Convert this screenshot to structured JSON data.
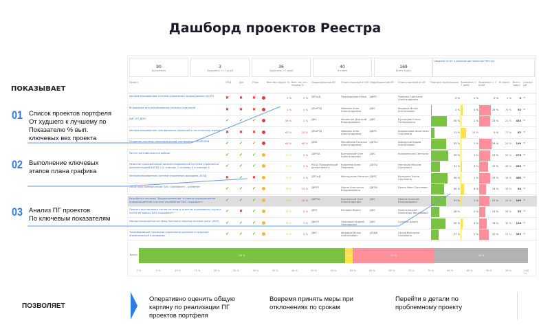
{
  "title": "Дашборд проектов Реестра",
  "shows": {
    "heading": "ПОКАЗЫВАЕТ",
    "items": [
      {
        "num": "01",
        "text": "Список проектов портфеля\nОт худшего к лучшему по\nПоказателю % вып.\nключевых вех проекта"
      },
      {
        "num": "02",
        "text": "Выполнение ключевых\nэтапов плана графика"
      },
      {
        "num": "03",
        "text": "Анализ ПГ проектов\nПо ключевым показателям"
      }
    ]
  },
  "kpis": [
    {
      "value": "90",
      "label": "Выполнено"
    },
    {
      "value": "3",
      "label": "Задержка <=7 дней"
    },
    {
      "value": "36",
      "label": "Задержка >7 дней"
    },
    {
      "value": "40",
      "label": "В плане"
    },
    {
      "value": "169",
      "label": "Всего задач"
    }
  ],
  "report_link": "Сводный отчет о реализации проектов Реестра",
  "columns": [
    "Проект",
    "ОПД",
    "Дог",
    "План",
    "Вып.вех нараст.%",
    "Вып. по, отч. период %",
    "Подразделение ВЗ",
    "Ответственный от ВЗ",
    "Подразделение ИТ",
    "Ответственный от ИТ",
    "Прогресс выполнения",
    "Задержка < 7 дней",
    "Задержка > 7 дней",
    "В плане",
    "Всего задач",
    "Ссылка ДК"
  ],
  "colors": {
    "red": "#e23b3b",
    "orange": "#f7b731",
    "green": "#7cc242",
    "yellow": "#ffe04d",
    "pink": "#ff8f9a",
    "gray": "#b3b3b3",
    "link": "#3a6fd8",
    "accent": "#2f7de1"
  },
  "rows": [
    {
      "name": "Автоматизированная система управления подрядчиками (АСУП)",
      "opd": "x",
      "dog": "x",
      "plan": "x",
      "status": "red",
      "pct": "0 %",
      "pct2": "0 %",
      "dept": "ДПСиД",
      "resp": "Поликарпова Юлия",
      "dept_it": "ДИРС",
      "resp_it": "Панкова Светлана Александровна",
      "progress": "0 %",
      "d7": "0 %",
      "d7p": "0 %",
      "inplan": "0 %",
      "total": "0"
    },
    {
      "name": "BI решение для планирования сложных компаний",
      "opd": "x",
      "dog": "x",
      "plan": "x",
      "status": "red",
      "pct": "3 %",
      "pct2": "0 %",
      "dept": "ДПиРТД",
      "resp": "Иванова Анна Александровна",
      "dept_it": "ДИС",
      "resp_it": "Федоров Игорь Анатольевич",
      "progress": "2 %",
      "d7": "4 %",
      "d7p": "24 %",
      "inplan": "70 %",
      "total": "92"
    },
    {
      "name": "АИС УП_ДОП",
      "opd": "v",
      "dog": "v",
      "plan": "v",
      "status": "red",
      "pct": "56 %",
      "pct2": "2 %",
      "dept": "ДИС",
      "resp": "Филиппов Дмитрий Владимирович",
      "dept_it": "ДИС",
      "resp_it": "Кузнецова Елена Геннадьевна",
      "progress": "55 %",
      "d7": "2 %",
      "d7p": "23 %",
      "inplan": "21 %",
      "total": "453"
    },
    {
      "name": "Автоматизированное планирование компаний в тактическом периоде",
      "opd": "x",
      "dog": "x",
      "plan": "x",
      "status": "red",
      "pct": "67 %",
      "pct2": "23 %",
      "dept": "ДПиРТД",
      "resp": "Иванова Анна Александровна",
      "dept_it": "ДИРС",
      "resp_it": "Хорошилова Анастасия Сергеевна",
      "progress": "11 %",
      "d7": "12 %",
      "d7p": "0 %",
      "inplan": "77 %",
      "total": "82"
    },
    {
      "name": "Создание системы технологической платформы ... КОРОЛЕВ",
      "opd": "v",
      "dog": "v",
      "plan": "v",
      "status": "red",
      "pct": "69 %",
      "pct2": "65 %",
      "dept": "ДПИ",
      "resp": "Михайлова Наталья Александровна",
      "dept_it": "ДИТЫ",
      "resp_it": "Шамрунов Вадим Анатольевич",
      "progress": "53 %",
      "d7": "1 %",
      "d7p": "26 %",
      "inplan": "20 %",
      "total": "199"
    },
    {
      "name": "Расчет рентабельности рейсов",
      "opd": "v",
      "dog": "v",
      "plan": "v",
      "status": "orange",
      "pct": "71 %",
      "pct2": "0 %",
      "dept": "ДИРЗА",
      "resp": "Болтовский Олег Александрович",
      "dept_it": "ДИС",
      "resp_it": "Коломенская Светлана",
      "progress": "59 %",
      "d7": "1 %",
      "d7p": "23 %",
      "inplan": "20 %",
      "total": "276"
    },
    {
      "name": "Развитие корпоративной автоматизированной системы управления документацией КАСУД 2.0, очередь 2, очередь 3 и очередь 4",
      "opd": "v",
      "dog": "v",
      "plan": "v",
      "status": "orange",
      "pct": "71 %",
      "pct2": "0 %",
      "dept": "КЮД (Юридический департамент)",
      "resp": "Ковалева Анна Павловна",
      "dept_it": "ДИТЫ",
      "resp_it": "Нестеров Максим Сергеевич",
      "progress": "31 %",
      "d7": "3 %",
      "d7p": "19 %",
      "inplan": "46 %",
      "total": "283"
    },
    {
      "name": "Автоматизированная система управления доходами_АСУД",
      "opd": "x",
      "dog": "v",
      "plan": "x",
      "status": "orange",
      "pct": "75 %",
      "pct2": "0 %",
      "dept": "ДПСиД",
      "resp": "Французова Наталья",
      "dept_it": "ДИРС",
      "resp_it": "Володина Елена Сергеевна",
      "progress": "56 %",
      "d7": "1 %",
      "d7p": "23 %",
      "inplan": "18 %",
      "total": "460"
    },
    {
      "name": "Логистика коммерческой ПАО «Аэрофлот» - развитие",
      "opd": "v",
      "dog": "v",
      "plan": "v",
      "status": "orange",
      "pct": "76 %",
      "pct2": "13 %",
      "dept": "ДИОП",
      "resp": "Ирина Анастасия Владимировна",
      "dept_it": "ДИТЫ",
      "resp_it": "Панин Иван Сергеевич",
      "progress": "45 %",
      "d7": "8 %",
      "d7p": "14 %",
      "inplan": "33 %",
      "total": "64"
    },
    {
      "name": "Разработка системы \"Бюджетирование\" в рамках корпоративной информационной системы управления ПАО «Аэрофлот»",
      "opd": "v",
      "dog": "v",
      "plan": "v",
      "status": "orange",
      "pct": "76 %",
      "pct2": "15 %",
      "dept": "ДИРЗА",
      "resp": "Болтовский Олег Александрович",
      "dept_it": "ДИС",
      "resp_it": "Иванов Алексей Владимирович",
      "progress": "53 %",
      "d7": "2 %",
      "d7p": "21 %",
      "inplan": "24 %",
      "total": "169",
      "highlight": true
    },
    {
      "name": "Процесс выставления счетов на оплату агентам за перевозку груза и почты на рейсах ПАО «Аэрофлот»",
      "opd": "v",
      "dog": "x",
      "plan": "v",
      "status": "orange",
      "pct": "78 %",
      "pct2": "0 %",
      "dept": "ДПП",
      "resp": "Катаева Ирина",
      "dept_it": "ДИС",
      "resp_it": "Капельницкий Александр Викторович",
      "progress": "28 %",
      "d7": "0 %",
      "d7p": "13 %",
      "inplan": "58 %",
      "total": "53"
    },
    {
      "name": "Импортозамещение системы Контроля закупки сетевых услуг (КСУ)",
      "opd": "v",
      "dog": "v",
      "plan": "v",
      "status": "orange",
      "pct": "78 %",
      "pct2": "7 %",
      "dept": "ДИОП",
      "resp": "Леонидов Андрей Леонидович",
      "dept_it": "ДИС",
      "resp_it": "Суханов Данил",
      "progress": "50 %",
      "d7": "4 %",
      "d7p": "16 %",
      "inplan": "30 %",
      "total": "128"
    },
    {
      "name": "Трансформация процессов управления данными и создание аналитической платформы",
      "opd": "v",
      "dog": "v",
      "plan": "v",
      "status": "orange",
      "pct": "79 %",
      "pct2": "0 %",
      "dept": "ДИС",
      "resp": "Федоров Игорь Анатольевич",
      "dept_it": "ДОДИ",
      "resp_it": "Сычев Виктория Сергеевна",
      "progress": "27 %",
      "d7": "2 %",
      "d7p": "20 %",
      "inplan": "51 %",
      "total": "359"
    }
  ],
  "summary": {
    "label": "Всего",
    "segments": [
      {
        "value": 53,
        "text": "53 %",
        "color": "#7cc242"
      },
      {
        "value": 2,
        "text": "2 %",
        "color": "#ffe04d"
      },
      {
        "value": 21,
        "text": "21 %",
        "color": "#ff8f9a"
      },
      {
        "value": 24,
        "text": "24 %",
        "color": "#b3b3b3"
      }
    ],
    "ticks": [
      "0 %",
      "5 %",
      "10 %",
      "15 %",
      "20 %",
      "25 %",
      "30 %",
      "35 %",
      "40 %",
      "45 %",
      "50 %",
      "55 %",
      "60 %",
      "65 %",
      "70 %",
      "75 %",
      "80 %",
      "85 %",
      "90 %",
      "95 %",
      "100 %"
    ]
  },
  "allows": {
    "heading": "ПОЗВОЛЯЕТ",
    "items": [
      "Оперативно оценить общую\nкартину по реализации ПГ\nпроектов портфеля",
      "Вовремя принять меры при\nотклонениях по срокам",
      "Перейти в детали по\nпроблемному проекту"
    ]
  }
}
